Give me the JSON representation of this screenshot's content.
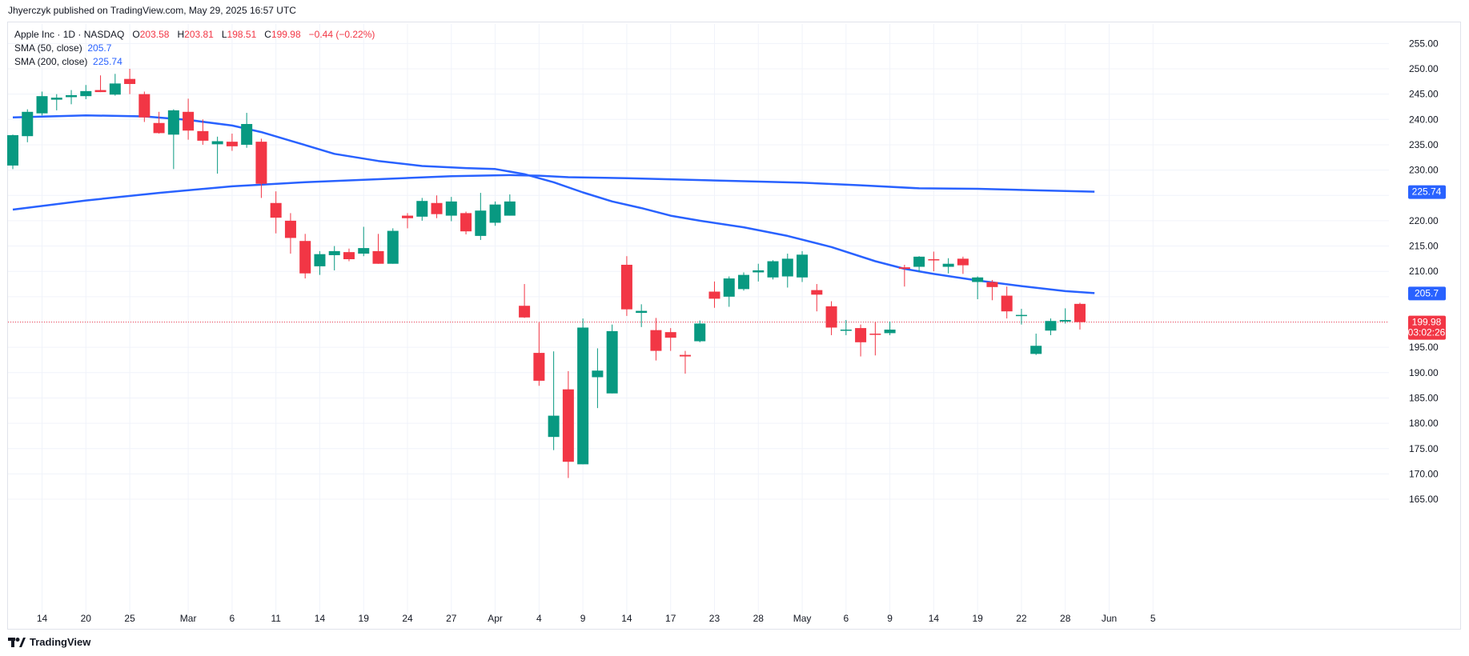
{
  "header": {
    "published": "Jhyerczyk published on TradingView.com, May 29, 2025 16:57 UTC"
  },
  "legend": {
    "symbol": "Apple Inc · 1D · NASDAQ",
    "open_label": "O",
    "open": "203.58",
    "high_label": "H",
    "high": "203.81",
    "low_label": "L",
    "low": "198.51",
    "close_label": "C",
    "close": "199.98",
    "change": "−0.44 (−0.22%)",
    "sma50_label": "SMA (50, close)",
    "sma50_value": "205.7",
    "sma200_label": "SMA (200, close)",
    "sma200_value": "225.74"
  },
  "price_labels": {
    "sma200": "225.74",
    "sma50": "205.7",
    "last_price": "199.98",
    "countdown": "03:02:26"
  },
  "branding": {
    "name": "TradingView",
    "logo": "tradingview-logo"
  },
  "colors": {
    "up": "#089981",
    "down": "#f23645",
    "sma": "#2962ff",
    "grid": "#f0f3fa",
    "text": "#131722"
  },
  "chart_data": {
    "type": "candlestick",
    "y_ticks": [
      "255.00",
      "250.00",
      "245.00",
      "240.00",
      "235.00",
      "230.00",
      "225.00",
      "220.00",
      "215.00",
      "210.00",
      "205.00",
      "200.00",
      "195.00",
      "190.00",
      "185.00",
      "180.00",
      "175.00",
      "170.00",
      "165.00"
    ],
    "ylim": [
      162,
      258
    ],
    "x_ticks": [
      {
        "label": "14",
        "i": 2
      },
      {
        "label": "20",
        "i": 5
      },
      {
        "label": "25",
        "i": 8
      },
      {
        "label": "Mar",
        "i": 12
      },
      {
        "label": "6",
        "i": 15
      },
      {
        "label": "11",
        "i": 18
      },
      {
        "label": "14",
        "i": 21
      },
      {
        "label": "19",
        "i": 24
      },
      {
        "label": "24",
        "i": 27
      },
      {
        "label": "27",
        "i": 30
      },
      {
        "label": "Apr",
        "i": 33
      },
      {
        "label": "4",
        "i": 36
      },
      {
        "label": "9",
        "i": 39
      },
      {
        "label": "14",
        "i": 42
      },
      {
        "label": "17",
        "i": 45
      },
      {
        "label": "23",
        "i": 48
      },
      {
        "label": "28",
        "i": 51
      },
      {
        "label": "May",
        "i": 54
      },
      {
        "label": "6",
        "i": 57
      },
      {
        "label": "9",
        "i": 60
      },
      {
        "label": "14",
        "i": 63
      },
      {
        "label": "19",
        "i": 66
      },
      {
        "label": "22",
        "i": 69
      },
      {
        "label": "28",
        "i": 72
      },
      {
        "label": "Jun",
        "i": 75
      },
      {
        "label": "5",
        "i": 78
      }
    ],
    "candles": [
      {
        "o": 230.9,
        "h": 237.0,
        "l": 230.2,
        "c": 236.9
      },
      {
        "o": 236.7,
        "h": 242.0,
        "l": 235.5,
        "c": 241.5
      },
      {
        "o": 241.2,
        "h": 245.5,
        "l": 240.8,
        "c": 244.6
      },
      {
        "o": 243.9,
        "h": 245.0,
        "l": 241.8,
        "c": 244.3
      },
      {
        "o": 244.4,
        "h": 245.8,
        "l": 243.0,
        "c": 244.8
      },
      {
        "o": 244.6,
        "h": 246.8,
        "l": 244.0,
        "c": 245.6
      },
      {
        "o": 245.8,
        "h": 248.7,
        "l": 245.4,
        "c": 245.4
      },
      {
        "o": 244.9,
        "h": 249.0,
        "l": 244.7,
        "c": 247.1
      },
      {
        "o": 248.0,
        "h": 250.0,
        "l": 245.0,
        "c": 247.0
      },
      {
        "o": 245.0,
        "h": 245.5,
        "l": 239.5,
        "c": 240.4
      },
      {
        "o": 239.3,
        "h": 241.5,
        "l": 237.2,
        "c": 237.3
      },
      {
        "o": 237.0,
        "h": 242.0,
        "l": 230.2,
        "c": 241.8
      },
      {
        "o": 241.5,
        "h": 244.1,
        "l": 236.0,
        "c": 237.8
      },
      {
        "o": 237.7,
        "h": 240.0,
        "l": 235.0,
        "c": 235.8
      },
      {
        "o": 235.1,
        "h": 236.6,
        "l": 229.3,
        "c": 235.7
      },
      {
        "o": 235.6,
        "h": 237.2,
        "l": 233.8,
        "c": 234.7
      },
      {
        "o": 235.0,
        "h": 241.3,
        "l": 234.4,
        "c": 239.1
      },
      {
        "o": 235.6,
        "h": 236.2,
        "l": 224.5,
        "c": 227.3
      },
      {
        "o": 223.5,
        "h": 225.8,
        "l": 217.5,
        "c": 220.6
      },
      {
        "o": 220.0,
        "h": 221.5,
        "l": 213.5,
        "c": 216.6
      },
      {
        "o": 216.0,
        "h": 217.4,
        "l": 208.6,
        "c": 209.6
      },
      {
        "o": 211.0,
        "h": 214.0,
        "l": 209.3,
        "c": 213.4
      },
      {
        "o": 213.2,
        "h": 215.0,
        "l": 210.2,
        "c": 214.0
      },
      {
        "o": 213.8,
        "h": 214.5,
        "l": 212.0,
        "c": 212.4
      },
      {
        "o": 213.5,
        "h": 218.8,
        "l": 213.0,
        "c": 214.6
      },
      {
        "o": 214.0,
        "h": 217.4,
        "l": 211.5,
        "c": 211.5
      },
      {
        "o": 211.5,
        "h": 218.5,
        "l": 211.5,
        "c": 218.0
      },
      {
        "o": 221.0,
        "h": 221.5,
        "l": 218.5,
        "c": 220.5
      },
      {
        "o": 220.8,
        "h": 224.5,
        "l": 220.0,
        "c": 223.9
      },
      {
        "o": 223.5,
        "h": 225.0,
        "l": 220.5,
        "c": 221.3
      },
      {
        "o": 221.0,
        "h": 224.7,
        "l": 219.9,
        "c": 223.8
      },
      {
        "o": 221.5,
        "h": 221.8,
        "l": 217.3,
        "c": 217.9
      },
      {
        "o": 217.0,
        "h": 225.5,
        "l": 216.2,
        "c": 222.0
      },
      {
        "o": 219.6,
        "h": 223.8,
        "l": 219.0,
        "c": 223.2
      },
      {
        "o": 221.0,
        "h": 225.2,
        "l": 221.0,
        "c": 223.8
      },
      {
        "o": 203.2,
        "h": 207.5,
        "l": 200.8,
        "c": 200.9
      },
      {
        "o": 193.9,
        "h": 199.9,
        "l": 187.4,
        "c": 188.4
      },
      {
        "o": 177.3,
        "h": 194.2,
        "l": 174.7,
        "c": 181.5
      },
      {
        "o": 186.7,
        "h": 190.3,
        "l": 169.2,
        "c": 172.4
      },
      {
        "o": 171.9,
        "h": 200.7,
        "l": 171.9,
        "c": 198.9
      },
      {
        "o": 189.1,
        "h": 194.8,
        "l": 183.0,
        "c": 190.4
      },
      {
        "o": 185.9,
        "h": 199.5,
        "l": 185.9,
        "c": 198.2
      },
      {
        "o": 211.3,
        "h": 213.0,
        "l": 201.2,
        "c": 202.5
      },
      {
        "o": 201.8,
        "h": 203.5,
        "l": 199.0,
        "c": 202.2
      },
      {
        "o": 198.4,
        "h": 200.8,
        "l": 192.4,
        "c": 194.3
      },
      {
        "o": 198.0,
        "h": 198.8,
        "l": 194.3,
        "c": 196.9
      },
      {
        "o": 193.5,
        "h": 194.3,
        "l": 189.8,
        "c": 193.2
      },
      {
        "o": 196.2,
        "h": 200.3,
        "l": 196.0,
        "c": 199.7
      },
      {
        "o": 206.0,
        "h": 208.0,
        "l": 202.8,
        "c": 204.6
      },
      {
        "o": 205.0,
        "h": 209.0,
        "l": 203.0,
        "c": 208.6
      },
      {
        "o": 206.5,
        "h": 209.8,
        "l": 206.2,
        "c": 209.3
      },
      {
        "o": 209.8,
        "h": 211.5,
        "l": 208.0,
        "c": 210.2
      },
      {
        "o": 208.8,
        "h": 212.2,
        "l": 208.4,
        "c": 212.0
      },
      {
        "o": 209.0,
        "h": 213.5,
        "l": 206.8,
        "c": 212.5
      },
      {
        "o": 208.8,
        "h": 214.0,
        "l": 207.9,
        "c": 213.3
      },
      {
        "o": 206.3,
        "h": 207.5,
        "l": 202.1,
        "c": 205.4
      },
      {
        "o": 203.1,
        "h": 204.1,
        "l": 197.4,
        "c": 198.9
      },
      {
        "o": 198.5,
        "h": 200.4,
        "l": 197.4,
        "c": 198.5
      },
      {
        "o": 198.8,
        "h": 199.5,
        "l": 193.2,
        "c": 196.0
      },
      {
        "o": 197.7,
        "h": 200.0,
        "l": 193.4,
        "c": 197.5
      },
      {
        "o": 197.8,
        "h": 200.1,
        "l": 197.4,
        "c": 198.5
      },
      {
        "o": 210.8,
        "h": 211.3,
        "l": 207.0,
        "c": 210.5
      },
      {
        "o": 210.9,
        "h": 213.0,
        "l": 209.9,
        "c": 212.9
      },
      {
        "o": 212.4,
        "h": 213.9,
        "l": 210.0,
        "c": 212.3
      },
      {
        "o": 210.9,
        "h": 212.6,
        "l": 209.6,
        "c": 211.5
      },
      {
        "o": 212.5,
        "h": 212.9,
        "l": 209.5,
        "c": 211.2
      },
      {
        "o": 207.9,
        "h": 209.0,
        "l": 204.5,
        "c": 208.8
      },
      {
        "o": 207.9,
        "h": 208.3,
        "l": 204.3,
        "c": 206.9
      },
      {
        "o": 205.2,
        "h": 207.0,
        "l": 200.7,
        "c": 202.1
      },
      {
        "o": 201.4,
        "h": 202.6,
        "l": 199.5,
        "c": 201.4
      },
      {
        "o": 193.7,
        "h": 197.7,
        "l": 193.5,
        "c": 195.3
      },
      {
        "o": 198.3,
        "h": 200.7,
        "l": 197.4,
        "c": 200.2
      },
      {
        "o": 200.1,
        "h": 202.7,
        "l": 199.7,
        "c": 200.4
      },
      {
        "o": 203.58,
        "h": 203.81,
        "l": 198.51,
        "c": 199.98
      }
    ],
    "series": [
      {
        "name": "SMA (50, close)",
        "color": "#2962ff",
        "points": [
          [
            0,
            240.4
          ],
          [
            5,
            240.8
          ],
          [
            9,
            240.6
          ],
          [
            12,
            239.9
          ],
          [
            15,
            238.8
          ],
          [
            17,
            237.5
          ],
          [
            19,
            235.8
          ],
          [
            22,
            233.2
          ],
          [
            25,
            231.8
          ],
          [
            28,
            230.8
          ],
          [
            31,
            230.4
          ],
          [
            33,
            230.2
          ],
          [
            35,
            229.2
          ],
          [
            37,
            227.6
          ],
          [
            39,
            225.6
          ],
          [
            41,
            223.8
          ],
          [
            43,
            222.5
          ],
          [
            45,
            221.0
          ],
          [
            47,
            220.0
          ],
          [
            50,
            218.7
          ],
          [
            53,
            217.0
          ],
          [
            56,
            214.8
          ],
          [
            59,
            212.0
          ],
          [
            61,
            210.5
          ],
          [
            63,
            209.5
          ],
          [
            66,
            208.2
          ],
          [
            69,
            207.1
          ],
          [
            72,
            206.1
          ],
          [
            74,
            205.7
          ]
        ]
      },
      {
        "name": "SMA (200, close)",
        "color": "#2962ff",
        "points": [
          [
            0,
            222.2
          ],
          [
            5,
            224.0
          ],
          [
            10,
            225.5
          ],
          [
            15,
            226.8
          ],
          [
            20,
            227.6
          ],
          [
            25,
            228.2
          ],
          [
            30,
            228.8
          ],
          [
            34,
            229.0
          ],
          [
            36,
            228.9
          ],
          [
            38,
            228.6
          ],
          [
            42,
            228.4
          ],
          [
            46,
            228.1
          ],
          [
            50,
            227.8
          ],
          [
            54,
            227.5
          ],
          [
            58,
            227.0
          ],
          [
            62,
            226.4
          ],
          [
            66,
            226.3
          ],
          [
            70,
            226.0
          ],
          [
            74,
            225.74
          ]
        ]
      }
    ],
    "last_price": 199.98
  }
}
